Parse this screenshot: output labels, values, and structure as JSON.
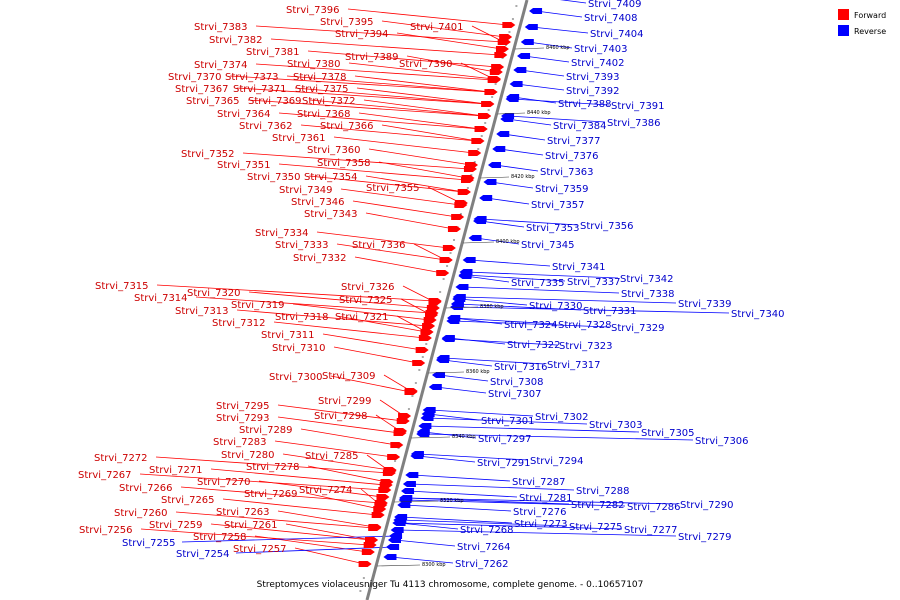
{
  "caption": "Streptomyces violaceusniger Tu 4113 chromosome, complete genome. - 0..10657107",
  "legend": [
    {
      "label": "Forward",
      "color": "#ff0000"
    },
    {
      "label": "Reverse",
      "color": "#0000ff"
    }
  ],
  "colors": {
    "forward": "#ff0000",
    "reverse": "#0000ff",
    "forward_text": "#cc0000",
    "reverse_text": "#0000cc",
    "backbone": "#808080"
  },
  "ticks": [
    "8300 kbp",
    "8320 kbp",
    "8340 kbp",
    "8360 kbp",
    "8380 kbp",
    "8400 kbp",
    "8420 kbp",
    "8440 kbp",
    "8460 kbp"
  ],
  "forward_genes": [
    "Strvi_7396",
    "Strvi_7395",
    "Strvi_7401",
    "Strvi_7394",
    "Strvi_7383",
    "Strvi_7382",
    "Strvi_7389",
    "Strvi_7381",
    "Strvi_7390",
    "Strvi_7374",
    "Strvi_7380",
    "Strvi_7370",
    "Strvi_7373",
    "Strvi_7378",
    "Strvi_7367",
    "Strvi_7371",
    "Strvi_7375",
    "Strvi_7365",
    "Strvi_7369",
    "Strvi_7372",
    "Strvi_7364",
    "Strvi_7368",
    "Strvi_7362",
    "Strvi_7366",
    "Strvi_7361",
    "Strvi_7360",
    "Strvi_7352",
    "Strvi_7358",
    "Strvi_7351",
    "Strvi_7350",
    "Strvi_7354",
    "Strvi_7349",
    "Strvi_7355",
    "Strvi_7346",
    "Strvi_7343",
    "Strvi_7334",
    "Strvi_7333",
    "Strvi_7336",
    "Strvi_7332",
    "Strvi_7315",
    "Strvi_7326",
    "Strvi_7314",
    "Strvi_7320",
    "Strvi_7325",
    "Strvi_7319",
    "Strvi_7313",
    "Strvi_7318",
    "Strvi_7321",
    "Strvi_7312",
    "Strvi_7311",
    "Strvi_7310",
    "Strvi_7300",
    "Strvi_7309",
    "Strvi_7299",
    "Strvi_7295",
    "Strvi_7298",
    "Strvi_7293",
    "Strvi_7289",
    "Strvi_7283",
    "Strvi_7280",
    "Strvi_7285",
    "Strvi_7278",
    "Strvi_7272",
    "Strvi_7271",
    "Strvi_7267",
    "Strvi_7270",
    "Strvi_7266",
    "Strvi_7269",
    "Strvi_7274",
    "Strvi_7265",
    "Strvi_7263",
    "Strvi_7260",
    "Strvi_7261",
    "Strvi_7259",
    "Strvi_7256",
    "Strvi_7258",
    "Strvi_7257"
  ],
  "reverse_genes": [
    "Strvi_7409",
    "Strvi_7408",
    "Strvi_7404",
    "Strvi_7403",
    "Strvi_7402",
    "Strvi_7393",
    "Strvi_7392",
    "Strvi_7388",
    "Strvi_7391",
    "Strvi_7384",
    "Strvi_7386",
    "Strvi_7377",
    "Strvi_7376",
    "Strvi_7363",
    "Strvi_7359",
    "Strvi_7357",
    "Strvi_7353",
    "Strvi_7356",
    "Strvi_7345",
    "Strvi_7341",
    "Strvi_7335",
    "Strvi_7337",
    "Strvi_7342",
    "Strvi_7338",
    "Strvi_7339",
    "Strvi_7340",
    "Strvi_7330",
    "Strvi_7331",
    "Strvi_7324",
    "Strvi_7328",
    "Strvi_7329",
    "Strvi_7322",
    "Strvi_7323",
    "Strvi_7316",
    "Strvi_7317",
    "Strvi_7308",
    "Strvi_7307",
    "Strvi_7301",
    "Strvi_7302",
    "Strvi_7303",
    "Strvi_7305",
    "Strvi_7306",
    "Strvi_7297",
    "Strvi_7291",
    "Strvi_7294",
    "Strvi_7287",
    "Strvi_7288",
    "Strvi_7281",
    "Strvi_7282",
    "Strvi_7286",
    "Strvi_7290",
    "Strvi_7276",
    "Strvi_7273",
    "Strvi_7275",
    "Strvi_7277",
    "Strvi_7279",
    "Strvi_7268",
    "Strvi_7264",
    "Strvi_7262",
    "Strvi_7255",
    "Strvi_7254"
  ]
}
